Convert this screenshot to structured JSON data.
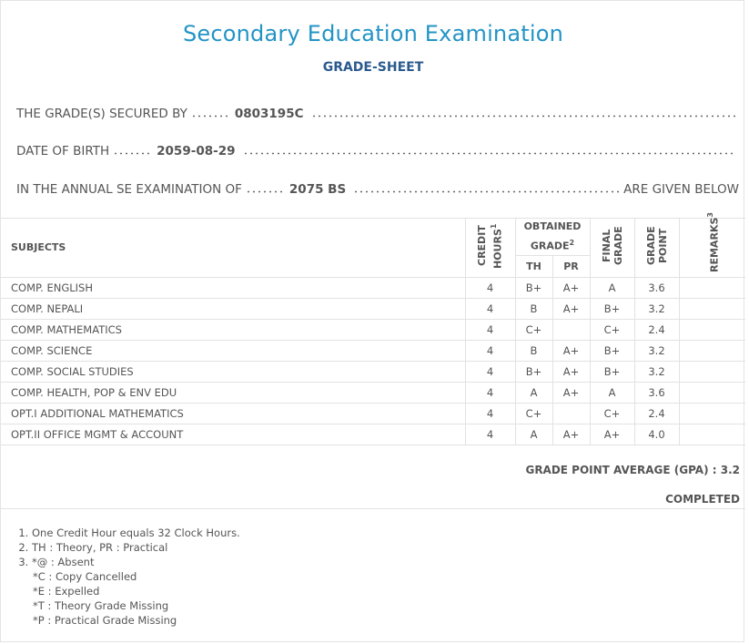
{
  "header": {
    "title": "Secondary Education Examination",
    "subtitle": "GRADE-SHEET"
  },
  "info": [
    {
      "label": "THE GRADE(S) SECURED BY",
      "value": "0803195C"
    },
    {
      "label": "DATE OF BIRTH",
      "value": "2059-08-29"
    },
    {
      "label": "IN THE ANNUAL SE EXAMINATION OF",
      "value": "2075 BS",
      "suffix": "ARE GIVEN BELOW"
    }
  ],
  "table": {
    "columns": {
      "subjects": "SUBJECTS",
      "credit_hours": {
        "label": "CREDIT HOURS",
        "note": "1"
      },
      "obtained_grade": {
        "label": "OBTAINED GRADE",
        "note": "2"
      },
      "th": "TH",
      "pr": "PR",
      "final_grade": "FINAL GRADE",
      "grade_point": "GRADE POINT",
      "remarks": {
        "label": "REMARKS",
        "note": "3"
      }
    },
    "rows": [
      [
        "COMP. ENGLISH",
        "4",
        "B+",
        "A+",
        "A",
        "3.6"
      ],
      [
        "COMP. NEPALI",
        "4",
        "B",
        "A+",
        "B+",
        "3.2"
      ],
      [
        "COMP. MATHEMATICS",
        "4",
        "C+",
        null,
        "C+",
        "2.4"
      ],
      [
        "COMP. SCIENCE",
        "4",
        "B",
        "A+",
        "B+",
        "3.2"
      ],
      [
        "COMP. SOCIAL STUDIES",
        "4",
        "B+",
        "A+",
        "B+",
        "3.2"
      ],
      [
        "COMP. HEALTH, POP & ENV EDU",
        "4",
        "A",
        "A+",
        "A",
        "3.6"
      ],
      [
        "OPT.I ADDITIONAL MATHEMATICS",
        "4",
        "C+",
        null,
        "C+",
        "2.4"
      ],
      [
        "OPT.II OFFICE MGMT & ACCOUNT",
        "4",
        "A",
        "A+",
        "A+",
        "4.0"
      ]
    ]
  },
  "summary": {
    "gpa_label": "GRADE POINT AVERAGE (GPA) :",
    "gpa": "3.2",
    "status": "COMPLETED"
  },
  "notes": [
    {
      "text": "One Credit Hour equals 32 Clock Hours."
    },
    {
      "text": "TH : Theory, PR : Practical"
    },
    {
      "text": "*@ : Absent",
      "sub": [
        "*C : Copy Cancelled",
        "*E : Expelled",
        "*T : Theory Grade Missing",
        "*P : Practical Grade Missing"
      ]
    }
  ]
}
